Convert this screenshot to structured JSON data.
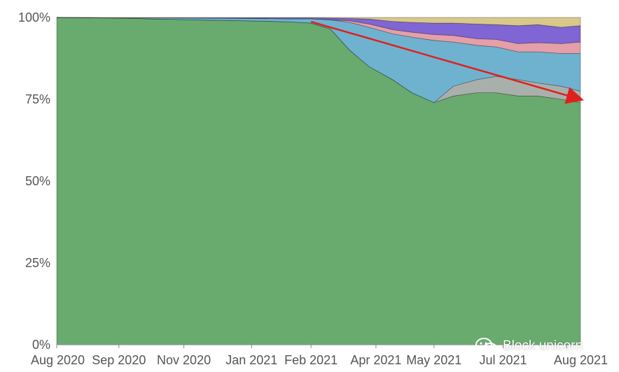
{
  "chart_data": {
    "type": "area",
    "stacked": true,
    "normalized": true,
    "x_ticks": [
      "Aug 2020",
      "Sep 2020",
      "Nov 2020",
      "Jan 2021",
      "Feb 2021",
      "Apr 2021",
      "May 2021",
      "Jul 2021",
      "Aug 2021"
    ],
    "y_ticks": [
      "0%",
      "25%",
      "50%",
      "75%",
      "100%"
    ],
    "ylim": [
      0,
      100
    ],
    "x": [
      "2020-08-01",
      "2020-09-15",
      "2020-10-15",
      "2020-11-15",
      "2020-12-15",
      "2021-01-15",
      "2021-02-01",
      "2021-02-15",
      "2021-03-01",
      "2021-03-15",
      "2021-04-01",
      "2021-04-15",
      "2021-05-01",
      "2021-05-15",
      "2021-06-01",
      "2021-06-15",
      "2021-07-01",
      "2021-07-15",
      "2021-08-01",
      "2021-08-15"
    ],
    "series": [
      {
        "color": "#69ab6f",
        "values": [
          100,
          99.8,
          99.5,
          99.2,
          99.0,
          98.7,
          98.3,
          96.5,
          90.0,
          85.0,
          81.0,
          77.0,
          74.0,
          76.0,
          77.0,
          77.0,
          76.0,
          76.0,
          75.0,
          74.0
        ]
      },
      {
        "color": "#a9b0ac",
        "values": [
          0,
          0,
          0,
          0,
          0,
          0,
          0,
          0,
          0,
          0,
          0,
          0,
          0,
          3.0,
          4.0,
          5.0,
          5.0,
          4.0,
          4.0,
          3.5
        ]
      },
      {
        "color": "#6fb2d0",
        "values": [
          0,
          0.1,
          0.4,
          0.6,
          0.7,
          0.9,
          1.3,
          2.8,
          8.5,
          12.0,
          14.0,
          17.0,
          19.0,
          13.5,
          10.5,
          9.0,
          8.5,
          9.5,
          10.0,
          11.5
        ]
      },
      {
        "color": "#e49fa9",
        "values": [
          0,
          0,
          0,
          0,
          0,
          0,
          0,
          0,
          0.5,
          1.0,
          1.3,
          1.5,
          1.8,
          2.0,
          2.0,
          2.3,
          2.5,
          2.8,
          3.0,
          3.5
        ]
      },
      {
        "color": "#8065d4",
        "values": [
          0,
          0,
          0,
          0.1,
          0.2,
          0.3,
          0.3,
          0.5,
          0.7,
          1.5,
          2.5,
          3.0,
          3.5,
          3.8,
          4.5,
          4.5,
          5.5,
          5.5,
          5.0,
          5.0
        ]
      },
      {
        "color": "#d8c88a",
        "values": [
          0,
          0.1,
          0.1,
          0.1,
          0.1,
          0.1,
          0.1,
          0.2,
          0.3,
          0.5,
          1.2,
          1.5,
          1.7,
          1.7,
          2.0,
          2.2,
          2.5,
          2.2,
          3.0,
          2.5
        ]
      }
    ],
    "annotations": [
      {
        "type": "arrow",
        "color": "#e0201c",
        "from": {
          "x": "2021-02-01",
          "y": 98.7
        },
        "to": {
          "x": "2021-08-15",
          "y": 75.0
        }
      }
    ]
  },
  "watermark": {
    "text": "Block unicorn",
    "icon": "wechat-icon"
  }
}
